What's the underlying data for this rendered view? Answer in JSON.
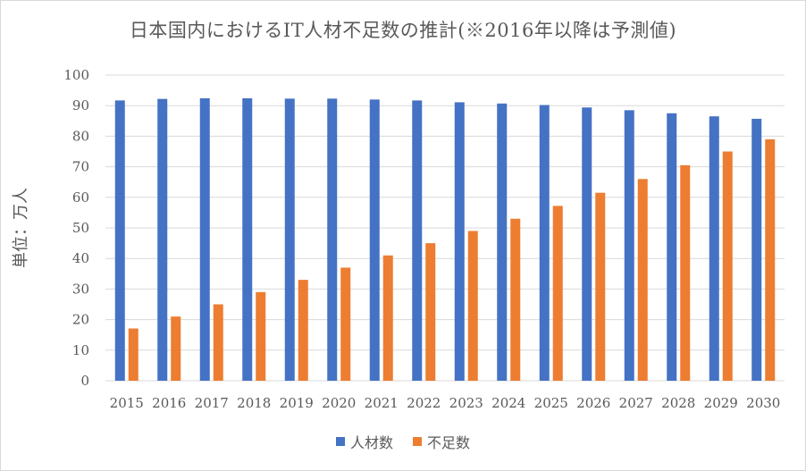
{
  "chart_data": {
    "type": "bar",
    "title": "日本国内におけるIT人材不足数の推計(※2016年以降は予測値)",
    "ylabel": "単位：万人",
    "xlabel": "",
    "ylim": [
      0,
      100
    ],
    "yticks": [
      0,
      10,
      20,
      30,
      40,
      50,
      60,
      70,
      80,
      90,
      100
    ],
    "grid": true,
    "legend_position": "bottom",
    "categories": [
      "2015",
      "2016",
      "2017",
      "2018",
      "2019",
      "2020",
      "2021",
      "2022",
      "2023",
      "2024",
      "2025",
      "2026",
      "2027",
      "2028",
      "2029",
      "2030"
    ],
    "series": [
      {
        "name": "人材数",
        "color": "#4472c4",
        "values": [
          91.7,
          92.2,
          92.4,
          92.4,
          92.3,
          92.3,
          92.0,
          91.7,
          91.1,
          90.7,
          90.2,
          89.4,
          88.5,
          87.5,
          86.5,
          85.7
        ]
      },
      {
        "name": "不足数",
        "color": "#ed7d31",
        "values": [
          17.1,
          21.0,
          25.0,
          29.0,
          33.0,
          37.0,
          41.0,
          45.0,
          49.0,
          53.0,
          57.2,
          61.5,
          66.0,
          70.5,
          75.0,
          79.0
        ]
      }
    ]
  }
}
